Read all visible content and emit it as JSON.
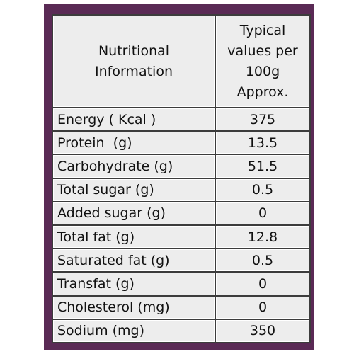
{
  "table": {
    "header": [
      "Nutritional Information",
      "Typical values per 100g Approx."
    ],
    "rows": [
      [
        "Energy ( Kcal )",
        375
      ],
      [
        "Protein  (g)",
        13.5
      ],
      [
        "Carbohydrate (g)",
        51.5
      ],
      [
        "Total sugar (g)",
        0.5
      ],
      [
        "Added sugar (g)",
        0
      ],
      [
        "Total fat (g)",
        12.8
      ],
      [
        "Saturated fat (g)",
        0.5
      ],
      [
        "Transfat (g)",
        0
      ],
      [
        "Cholesterol (mg)",
        0
      ],
      [
        "Sodium (mg)",
        350
      ]
    ]
  }
}
